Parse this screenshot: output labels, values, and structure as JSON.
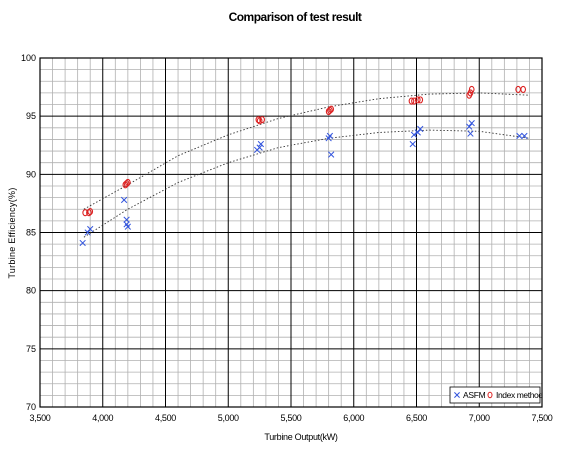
{
  "chart_data": {
    "type": "scatter",
    "title": "Comparison of test result",
    "xlabel": "Turbine Output(kW)",
    "ylabel": "Turbine Efficiency(%)",
    "xlim": [
      3500,
      7500
    ],
    "ylim": [
      70,
      100
    ],
    "x_ticks": [
      3500,
      4000,
      4500,
      5000,
      5500,
      6000,
      6500,
      7000,
      7500
    ],
    "x_tick_labels": [
      "3,500",
      "4,000",
      "4,500",
      "5,000",
      "5,500",
      "6,000",
      "6,500",
      "7,000",
      "7,500"
    ],
    "y_ticks": [
      70,
      75,
      80,
      85,
      90,
      95,
      100
    ],
    "y_tick_labels": [
      "70",
      "75",
      "80",
      "85",
      "90",
      "95",
      "100"
    ],
    "grid": true,
    "legend_position": "bottom-right",
    "series": [
      {
        "name": "ASFM",
        "marker": "x",
        "color": "#3355dd",
        "points": [
          [
            3840,
            84.1
          ],
          [
            3880,
            85.0
          ],
          [
            3900,
            85.3
          ],
          [
            4170,
            87.8
          ],
          [
            4190,
            86.1
          ],
          [
            4190,
            85.7
          ],
          [
            4200,
            85.5
          ],
          [
            5230,
            92.1
          ],
          [
            5250,
            92.3
          ],
          [
            5260,
            92.6
          ],
          [
            5800,
            93.1
          ],
          [
            5810,
            93.3
          ],
          [
            5820,
            91.7
          ],
          [
            6470,
            92.6
          ],
          [
            6480,
            93.4
          ],
          [
            6510,
            93.6
          ],
          [
            6530,
            93.9
          ],
          [
            6920,
            94.1
          ],
          [
            6930,
            93.5
          ],
          [
            6940,
            94.4
          ],
          [
            7320,
            93.3
          ],
          [
            7360,
            93.3
          ]
        ]
      },
      {
        "name": "Index method",
        "marker": "o",
        "color": "#dd2222",
        "points": [
          [
            3860,
            86.7
          ],
          [
            3890,
            86.7
          ],
          [
            3900,
            86.8
          ],
          [
            4180,
            89.1
          ],
          [
            4190,
            89.2
          ],
          [
            4200,
            89.3
          ],
          [
            5240,
            94.7
          ],
          [
            5250,
            94.6
          ],
          [
            5270,
            94.7
          ],
          [
            5800,
            95.4
          ],
          [
            5810,
            95.5
          ],
          [
            5820,
            95.6
          ],
          [
            6460,
            96.3
          ],
          [
            6480,
            96.3
          ],
          [
            6510,
            96.4
          ],
          [
            6530,
            96.4
          ],
          [
            6920,
            96.8
          ],
          [
            6930,
            97.0
          ],
          [
            6940,
            97.3
          ],
          [
            7310,
            97.3
          ],
          [
            7350,
            97.3
          ]
        ]
      }
    ],
    "trendlines": [
      {
        "series": "Index method",
        "style": "dotted",
        "x": [
          3850,
          4200,
          4600,
          5000,
          5400,
          5800,
          6200,
          6600,
          7000,
          7400
        ],
        "y": [
          87.0,
          89.1,
          91.6,
          93.4,
          94.8,
          95.8,
          96.5,
          96.9,
          97.0,
          96.8
        ]
      },
      {
        "series": "ASFM",
        "style": "dotted",
        "x": [
          3850,
          4200,
          4600,
          5000,
          5400,
          5800,
          6200,
          6600,
          7000,
          7400
        ],
        "y": [
          84.6,
          87.0,
          89.3,
          91.0,
          92.3,
          93.1,
          93.6,
          93.8,
          93.7,
          93.1
        ]
      }
    ]
  }
}
